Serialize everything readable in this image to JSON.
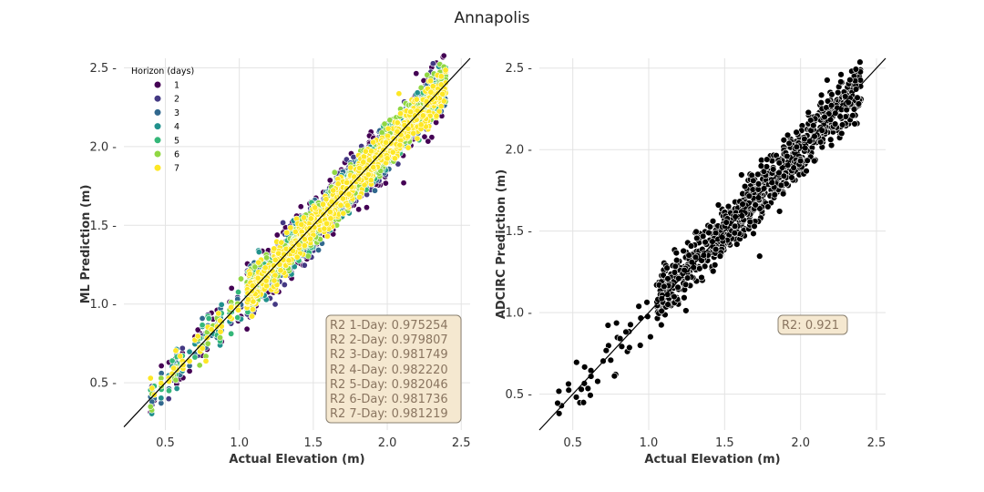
{
  "title": "Annapolis",
  "chart_data": [
    {
      "type": "scatter",
      "xlabel": "Actual Elevation (m)",
      "ylabel": "ML Prediction (m)",
      "xlim": [
        0.22,
        2.56
      ],
      "ylim": [
        0.2,
        2.56
      ],
      "xticks": [
        "0.5",
        "1.0",
        "1.5",
        "2.0",
        "2.5"
      ],
      "yticks": [
        "0.5",
        "1.0",
        "1.5",
        "2.0",
        "2.5"
      ],
      "grid": true,
      "legend": {
        "title": "Horizon (days)",
        "placement": "upper-left",
        "entries": [
          "1",
          "2",
          "3",
          "4",
          "5",
          "6",
          "7"
        ],
        "colors": [
          "#440154",
          "#443983",
          "#31688e",
          "#21918c",
          "#35b779",
          "#90d743",
          "#fde725"
        ]
      },
      "reference_line": "y = x",
      "series": [
        {
          "name": "1",
          "r2_label": "R2 1-Day: 0.975254",
          "r2": 0.975254,
          "spread": 0.085
        },
        {
          "name": "2",
          "r2_label": "R2 2-Day: 0.979807",
          "r2": 0.979807,
          "spread": 0.065
        },
        {
          "name": "3",
          "r2_label": "R2 3-Day: 0.981749",
          "r2": 0.981749,
          "spread": 0.058
        },
        {
          "name": "4",
          "r2_label": "R2 4-Day: 0.982220",
          "r2": 0.98222,
          "spread": 0.055
        },
        {
          "name": "5",
          "r2_label": "R2 5-Day: 0.982046",
          "r2": 0.982046,
          "spread": 0.056
        },
        {
          "name": "6",
          "r2_label": "R2 6-Day: 0.981736",
          "r2": 0.981736,
          "spread": 0.058
        },
        {
          "name": "7",
          "r2_label": "R2 7-Day: 0.981219",
          "r2": 0.981219,
          "spread": 0.06
        }
      ],
      "box_color": "#f5e8d0"
    },
    {
      "type": "scatter",
      "xlabel": "Actual Elevation (m)",
      "ylabel": "ADCIRC Prediction (m)",
      "xlim": [
        0.28,
        2.56
      ],
      "ylim": [
        0.28,
        2.56
      ],
      "xticks": [
        "0.5",
        "1.0",
        "1.5",
        "2.0",
        "2.5"
      ],
      "yticks": [
        "0.5",
        "1.0",
        "1.5",
        "2.0",
        "2.5"
      ],
      "grid": true,
      "reference_line": "y = x",
      "series": [
        {
          "name": "ADCIRC",
          "r2_label": "R2: 0.921",
          "r2": 0.921,
          "color": "#000000",
          "spread": 0.08
        }
      ],
      "box_color": "#f5e8d0"
    }
  ]
}
